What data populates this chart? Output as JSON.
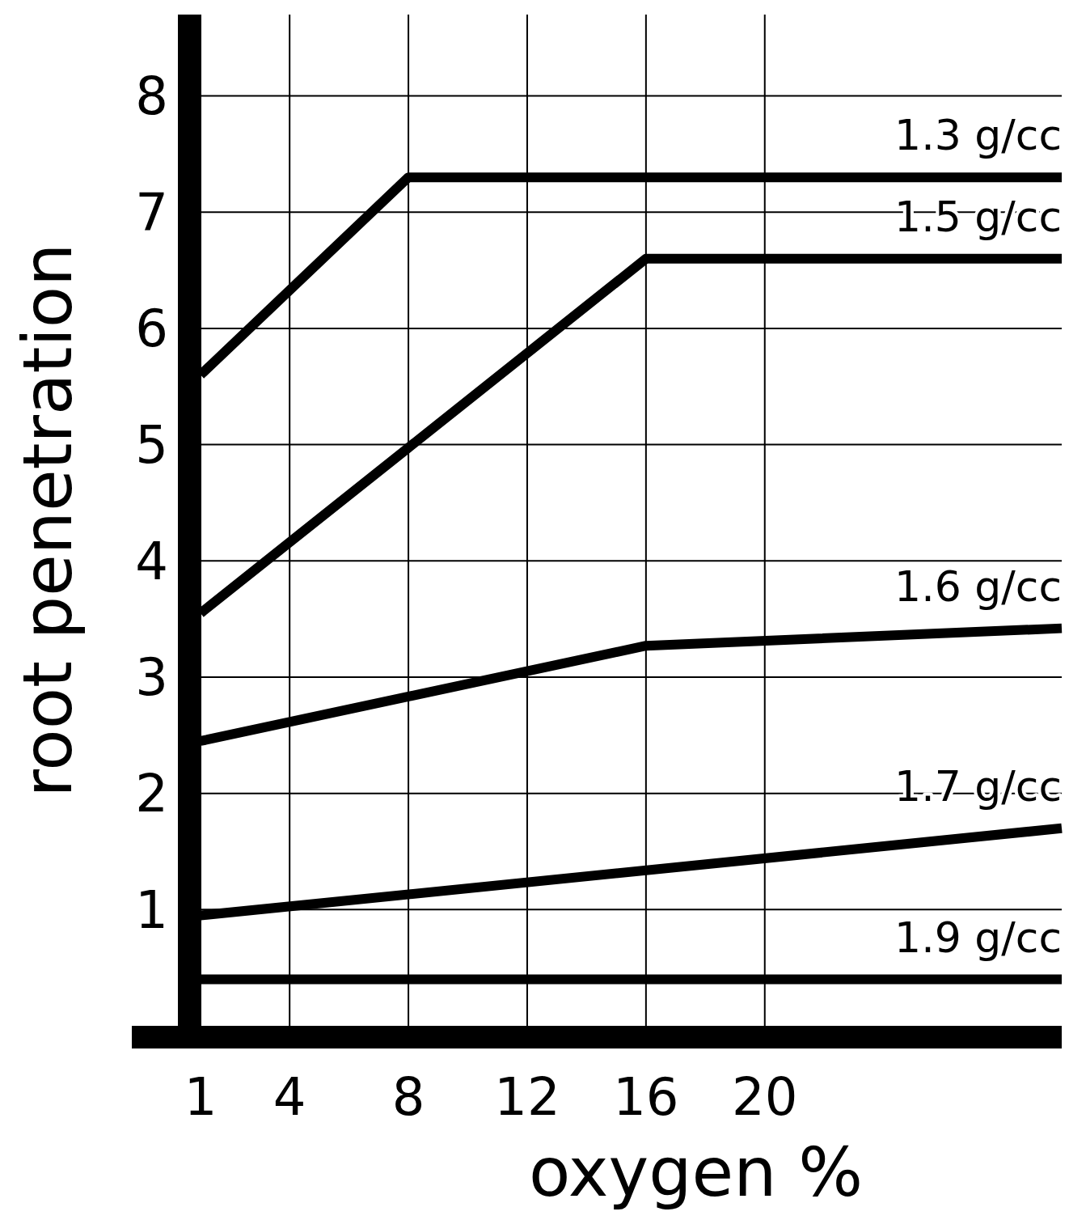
{
  "chart_data": {
    "type": "line",
    "xlabel": "oxygen %",
    "ylabel": "root penetration",
    "xlim": [
      1,
      30
    ],
    "xticks": [
      1,
      4,
      8,
      12,
      16,
      20
    ],
    "ylim": [
      0,
      8.7
    ],
    "yticks": [
      1,
      2,
      3,
      4,
      5,
      6,
      7,
      8
    ],
    "grid": true,
    "marker": "none",
    "line_style": "solid",
    "series": [
      {
        "name": "1.3 g/cc",
        "color": "#000000",
        "x": [
          1,
          8,
          30
        ],
        "values": [
          5.6,
          7.3,
          7.3
        ]
      },
      {
        "name": "1.5 g/cc",
        "color": "#000000",
        "x": [
          1,
          16,
          30
        ],
        "values": [
          3.55,
          6.6,
          6.6
        ]
      },
      {
        "name": "1.6 g/cc",
        "color": "#000000",
        "x": [
          1,
          16,
          30
        ],
        "values": [
          2.45,
          3.27,
          3.42
        ]
      },
      {
        "name": "1.7 g/cc",
        "color": "#000000",
        "x": [
          1,
          30
        ],
        "values": [
          0.95,
          1.7
        ]
      },
      {
        "name": "1.9 g/cc",
        "color": "#000000",
        "x": [
          1,
          30
        ],
        "values": [
          0.4,
          0.4
        ]
      }
    ]
  }
}
